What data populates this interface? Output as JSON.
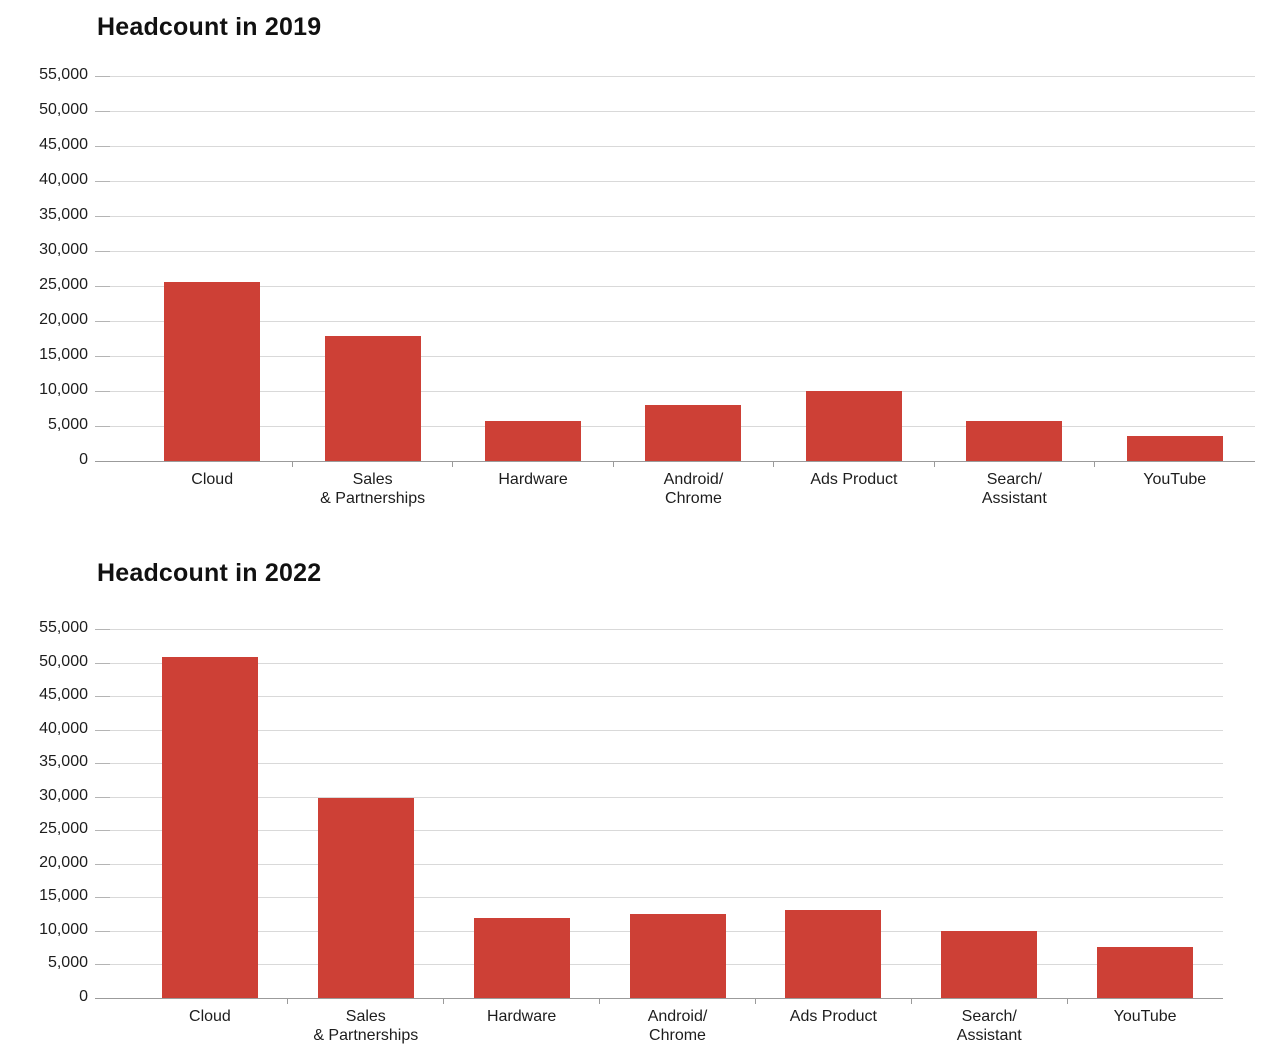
{
  "chart_data": [
    {
      "type": "bar",
      "title": "Headcount in 2019",
      "categories": [
        "Cloud",
        "Sales & Partnerships",
        "Hardware",
        "Android/Chrome",
        "Ads Product",
        "Search/Assistant",
        "YouTube"
      ],
      "category_label_lines": [
        [
          "Cloud"
        ],
        [
          "Sales",
          "& Partnerships"
        ],
        [
          "Hardware"
        ],
        [
          "Android/",
          "Chrome"
        ],
        [
          "Ads Product"
        ],
        [
          "Search/",
          "Assistant"
        ],
        [
          "YouTube"
        ]
      ],
      "values": [
        25600,
        17800,
        5700,
        8000,
        10000,
        5700,
        3600
      ],
      "xlabel": "",
      "ylabel": "",
      "ylim": [
        0,
        55000
      ],
      "y_tick_step": 5000,
      "y_tick_labels": [
        "0",
        "5,000",
        "10,000",
        "15,000",
        "20,000",
        "25,000",
        "30,000",
        "35,000",
        "40,000",
        "45,000",
        "50,000",
        "55,000"
      ],
      "grid": true,
      "legend": "none",
      "bar_color": "#cd4036"
    },
    {
      "type": "bar",
      "title": "Headcount in 2022",
      "categories": [
        "Cloud",
        "Sales & Partnerships",
        "Hardware",
        "Android/Chrome",
        "Ads Product",
        "Search/Assistant",
        "YouTube"
      ],
      "category_label_lines": [
        [
          "Cloud"
        ],
        [
          "Sales",
          "& Partnerships"
        ],
        [
          "Hardware"
        ],
        [
          "Android/",
          "Chrome"
        ],
        [
          "Ads Product"
        ],
        [
          "Search/",
          "Assistant"
        ],
        [
          "YouTube"
        ]
      ],
      "values": [
        50900,
        29800,
        11900,
        12500,
        13100,
        10000,
        7600
      ],
      "xlabel": "",
      "ylabel": "",
      "ylim": [
        0,
        55000
      ],
      "y_tick_step": 5000,
      "y_tick_labels": [
        "0",
        "5,000",
        "10,000",
        "15,000",
        "20,000",
        "25,000",
        "30,000",
        "35,000",
        "40,000",
        "45,000",
        "50,000",
        "55,000"
      ],
      "grid": true,
      "legend": "none",
      "bar_color": "#cd4036"
    }
  ],
  "style": {
    "bar_color": "#cd4036",
    "gridline_color": "#d9d9d9",
    "axis_line_color": "#9b9b9b",
    "text_color": "#1d1d1d",
    "title_color": "#111111",
    "background": "#ffffff"
  }
}
